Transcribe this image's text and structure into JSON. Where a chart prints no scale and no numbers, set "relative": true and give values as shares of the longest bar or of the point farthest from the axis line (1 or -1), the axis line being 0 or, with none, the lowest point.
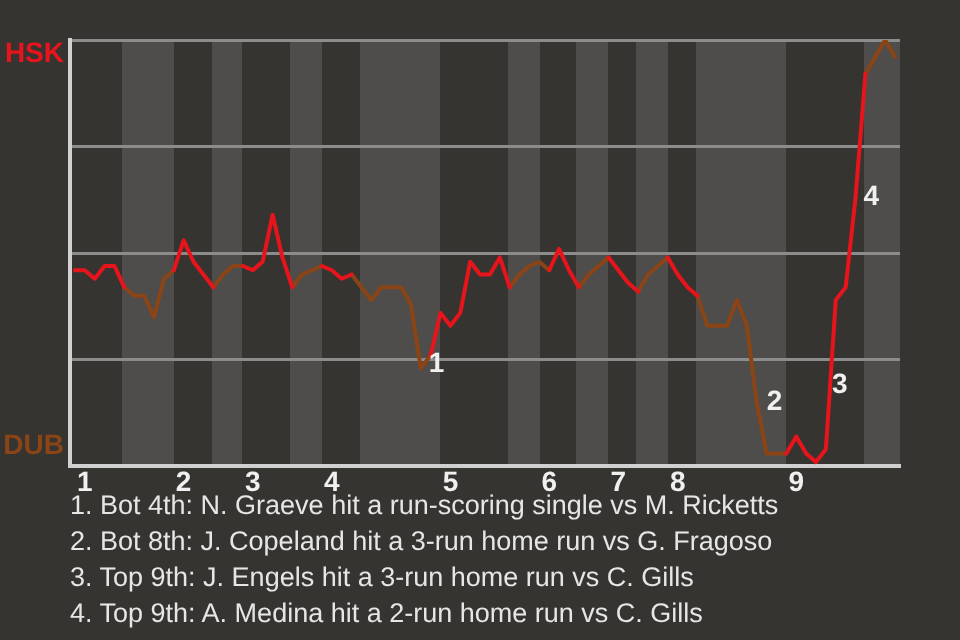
{
  "chart_data": {
    "type": "line",
    "relative": true,
    "categories": [
      null,
      "1",
      null,
      null,
      null,
      null,
      null,
      null,
      null,
      null,
      null,
      "2",
      null,
      null,
      null,
      null,
      null,
      null,
      "3",
      null,
      null,
      null,
      null,
      null,
      null,
      null,
      "4",
      null,
      null,
      null,
      null,
      null,
      null,
      null,
      null,
      null,
      null,
      null,
      "5",
      null,
      null,
      null,
      null,
      null,
      null,
      null,
      null,
      null,
      "6",
      null,
      null,
      null,
      null,
      null,
      null,
      "7",
      null,
      null,
      null,
      null,
      null,
      "8",
      null,
      null,
      null,
      null,
      null,
      null,
      null,
      null,
      null,
      null,
      null,
      "9",
      null,
      null,
      null,
      null,
      null,
      null,
      null,
      null,
      null,
      null
    ],
    "series": [
      {
        "name": "HSK",
        "color": "#e8141c",
        "values": [
          0.46,
          0.46,
          0.44,
          0.47,
          0.47,
          0.42,
          null,
          null,
          null,
          null,
          0.46,
          0.53,
          0.48,
          0.45,
          0.42,
          null,
          null,
          0.47,
          0.46,
          0.48,
          0.59,
          0.49,
          0.42,
          null,
          null,
          0.47,
          0.46,
          0.44,
          0.45,
          null,
          null,
          null,
          null,
          null,
          null,
          null,
          0.26,
          0.36,
          0.33,
          0.36,
          0.48,
          0.45,
          0.45,
          0.49,
          0.42,
          null,
          null,
          null,
          0.46,
          0.51,
          0.46,
          0.42,
          null,
          null,
          0.49,
          0.46,
          0.43,
          0.41,
          null,
          null,
          0.49,
          0.45,
          0.42,
          0.4,
          null,
          null,
          null,
          null,
          null,
          null,
          null,
          null,
          0.03,
          0.07,
          0.03,
          0.01,
          0.04,
          0.39,
          0.42,
          0.63,
          0.92,
          null,
          null,
          null
        ]
      },
      {
        "name": "DUB",
        "color": "#8a4416",
        "values": [
          null,
          null,
          null,
          null,
          null,
          0.42,
          0.4,
          0.4,
          0.35,
          0.44,
          0.46,
          null,
          null,
          null,
          0.42,
          0.45,
          0.47,
          0.47,
          null,
          null,
          null,
          null,
          0.42,
          0.45,
          0.46,
          0.47,
          null,
          null,
          0.45,
          0.42,
          0.39,
          0.42,
          0.42,
          0.42,
          0.38,
          0.23,
          0.26,
          null,
          null,
          null,
          null,
          null,
          null,
          null,
          0.42,
          0.45,
          0.47,
          0.48,
          0.46,
          null,
          null,
          0.42,
          0.45,
          0.47,
          0.49,
          null,
          null,
          0.41,
          0.45,
          0.47,
          0.49,
          null,
          null,
          0.4,
          0.33,
          0.33,
          0.33,
          0.39,
          0.33,
          0.15,
          0.03,
          0.03,
          0.03,
          null,
          null,
          null,
          null,
          null,
          null,
          null,
          0.92,
          0.96,
          1,
          0.96
        ]
      }
    ],
    "grid": "y",
    "annotations": [
      "1",
      "2",
      "3",
      "4",
      "1. Bot 4th: N. Graeve hit a run-scoring single vs M. Ricketts",
      "2. Bot 8th: J. Copeland hit a 3-run home run vs G. Fragoso",
      "3. Top 9th: J. Engels hit a 3-run home run vs C. Gills",
      "4. Top 9th: A. Medina hit a 2-run home run vs C. Gills"
    ]
  }
}
